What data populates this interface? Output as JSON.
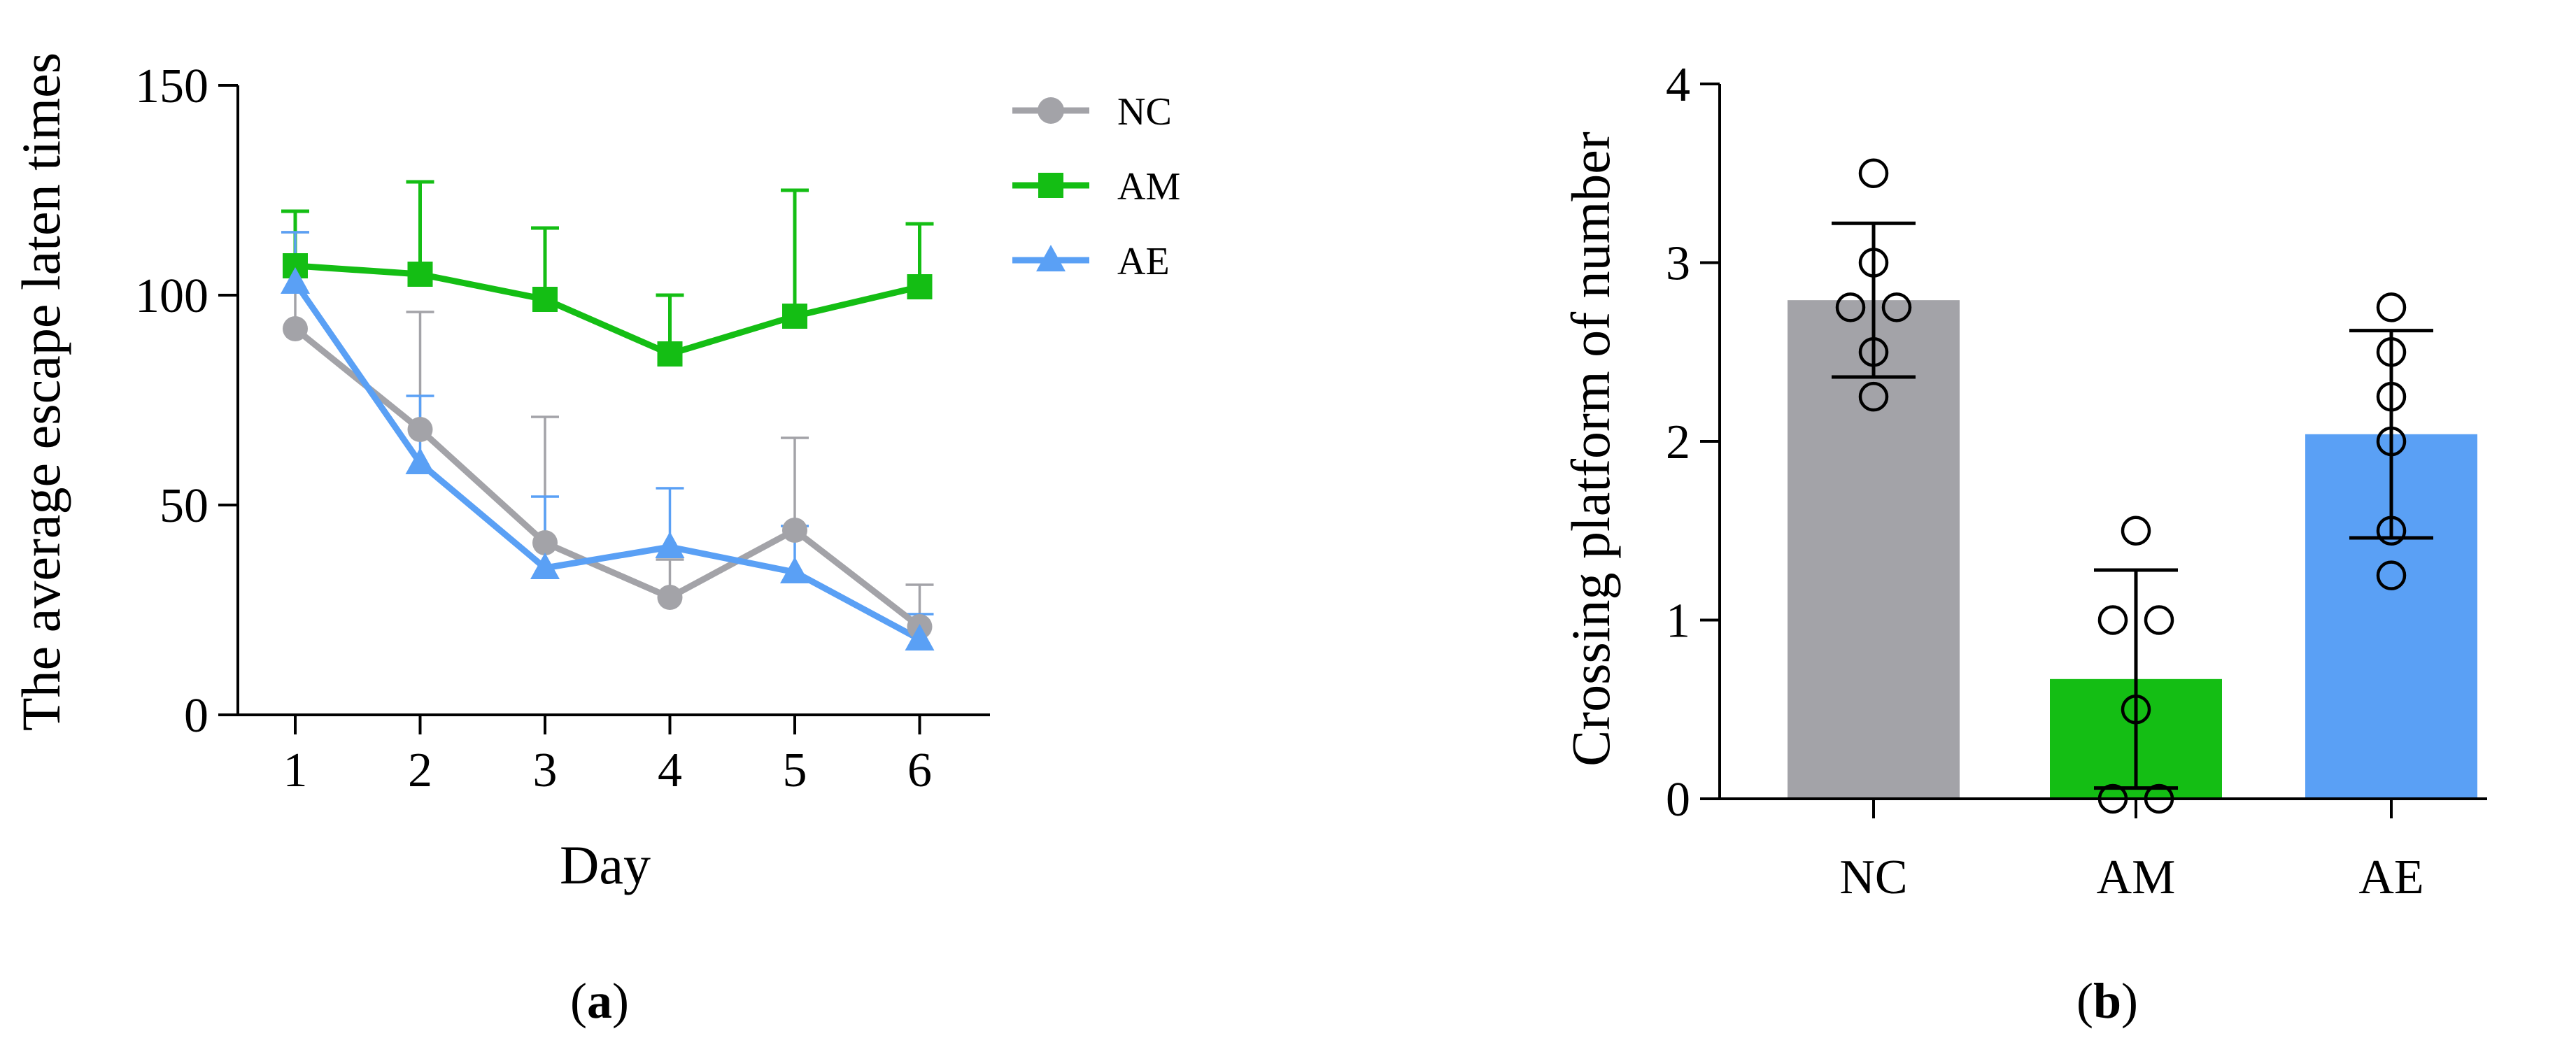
{
  "colors": {
    "nc": "#a3a3a8",
    "am": "#14be14",
    "ae": "#5aa0f5",
    "axis": "#000000"
  },
  "chart_data": [
    {
      "type": "line",
      "panel": "(a)",
      "panel_letter": "a",
      "title": "",
      "xlabel": "Day",
      "ylabel": "The average escape laten times",
      "x": [
        1,
        2,
        3,
        4,
        5,
        6
      ],
      "x_tick_labels": [
        "1",
        "2",
        "3",
        "4",
        "5",
        "6"
      ],
      "ylim": [
        0,
        150
      ],
      "y_ticks": [
        0,
        50,
        100,
        150
      ],
      "y_tick_labels": [
        "0",
        "50",
        "100",
        "150"
      ],
      "legend_position": "top-right",
      "grid": false,
      "series": [
        {
          "name": "NC",
          "marker": "circle",
          "color": "#a3a3a8",
          "values": [
            92,
            68,
            41,
            28,
            44,
            21
          ],
          "errors": [
            23,
            28,
            30,
            9,
            22,
            10
          ]
        },
        {
          "name": "AM",
          "marker": "square",
          "color": "#14be14",
          "values": [
            107,
            105,
            99,
            86,
            95,
            102
          ],
          "errors": [
            13,
            22,
            17,
            14,
            30,
            15
          ]
        },
        {
          "name": "AE",
          "marker": "triangle",
          "color": "#5aa0f5",
          "values": [
            103,
            60,
            35,
            40,
            34,
            18
          ],
          "errors": [
            12,
            16,
            17,
            14,
            11,
            6
          ]
        }
      ]
    },
    {
      "type": "bar",
      "panel": "(b)",
      "panel_letter": "b",
      "title": "",
      "xlabel": "",
      "ylabel": "Crossing platform of number",
      "categories": [
        "NC",
        "AM",
        "AE"
      ],
      "values": [
        2.79,
        0.67,
        2.04
      ],
      "errors": [
        0.43,
        0.61,
        0.58
      ],
      "bar_colors": [
        "#a3a3a8",
        "#14be14",
        "#5aa0f5"
      ],
      "ylim": [
        0,
        4
      ],
      "y_ticks": [
        0,
        1,
        2,
        3,
        4
      ],
      "y_tick_labels": [
        "0",
        "1",
        "2",
        "3",
        "4"
      ],
      "grid": false,
      "points": [
        [
          3.5,
          3.0,
          2.75,
          2.75,
          2.5,
          2.25
        ],
        [
          1.5,
          1.0,
          1.0,
          0.5,
          0.0,
          0.0
        ],
        [
          2.75,
          2.5,
          2.25,
          2.0,
          1.5,
          1.25
        ]
      ]
    }
  ]
}
